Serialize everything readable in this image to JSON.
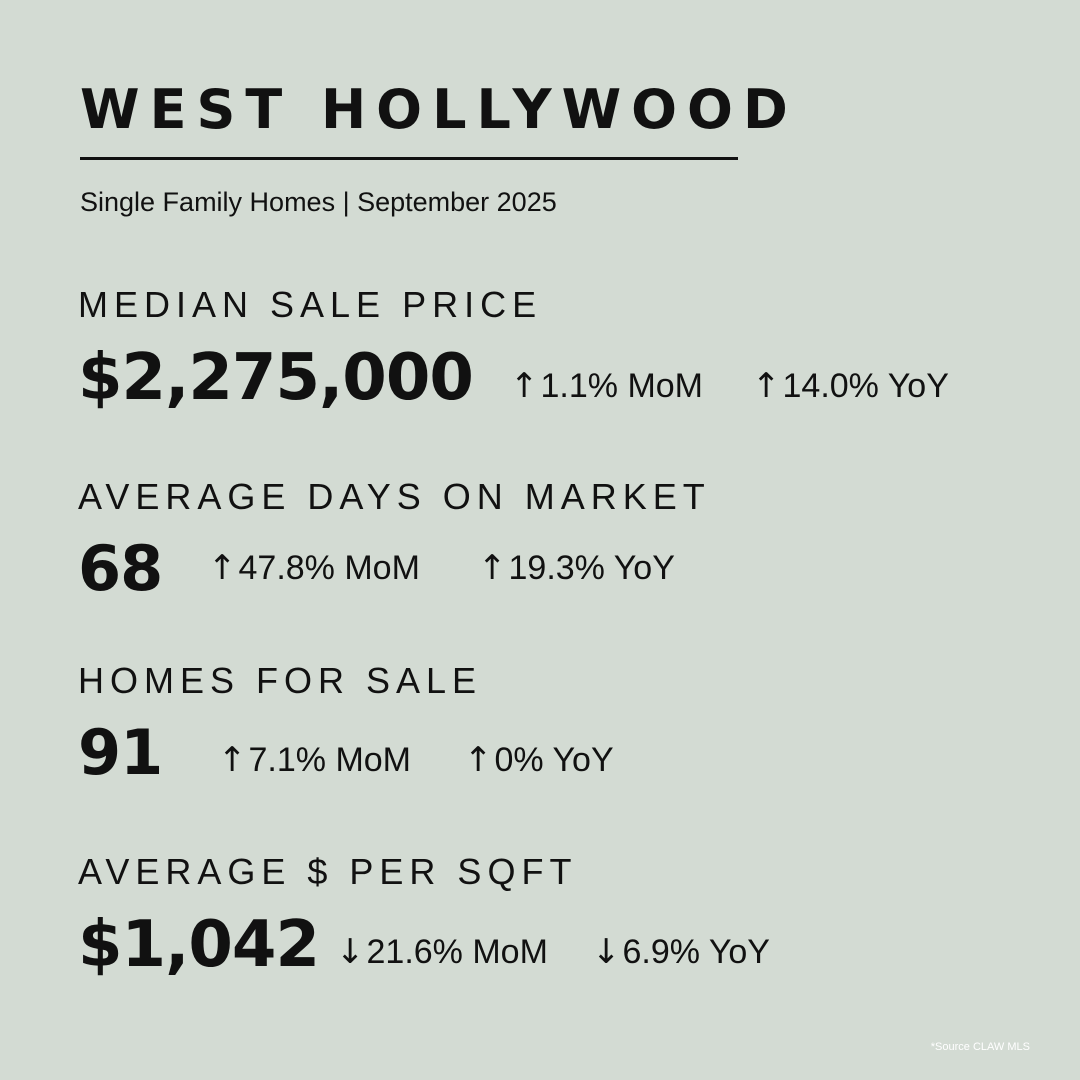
{
  "header": {
    "title": "WEST HOLLYWOOD",
    "subtitle": "Single Family Homes | September 2025"
  },
  "metrics": [
    {
      "label": "MEDIAN SALE PRICE",
      "value": "$2,275,000",
      "mom": {
        "direction": "up",
        "arrow": "↑",
        "text": "1.1% MoM"
      },
      "yoy": {
        "direction": "up",
        "arrow": "↑",
        "text": "14.0% YoY"
      }
    },
    {
      "label": "AVERAGE DAYS ON MARKET",
      "value": "68",
      "mom": {
        "direction": "up",
        "arrow": "↑",
        "text": "47.8% MoM"
      },
      "yoy": {
        "direction": "up",
        "arrow": "↑",
        "text": "19.3% YoY"
      }
    },
    {
      "label": "HOMES FOR SALE",
      "value": "91",
      "mom": {
        "direction": "up",
        "arrow": "↑",
        "text": "7.1% MoM"
      },
      "yoy": {
        "direction": "up",
        "arrow": "↑",
        "text": "0% YoY"
      }
    },
    {
      "label": "AVERAGE $ PER SQFT",
      "value": "$1,042",
      "mom": {
        "direction": "down",
        "arrow": "↓",
        "text": "21.6% MoM"
      },
      "yoy": {
        "direction": "down",
        "arrow": "↓",
        "text": "6.9% YoY"
      }
    }
  ],
  "footer": {
    "source": "*Source CLAW MLS"
  },
  "colors": {
    "background": "#d3dbd3",
    "text": "#111111",
    "source_text": "#ffffff"
  }
}
